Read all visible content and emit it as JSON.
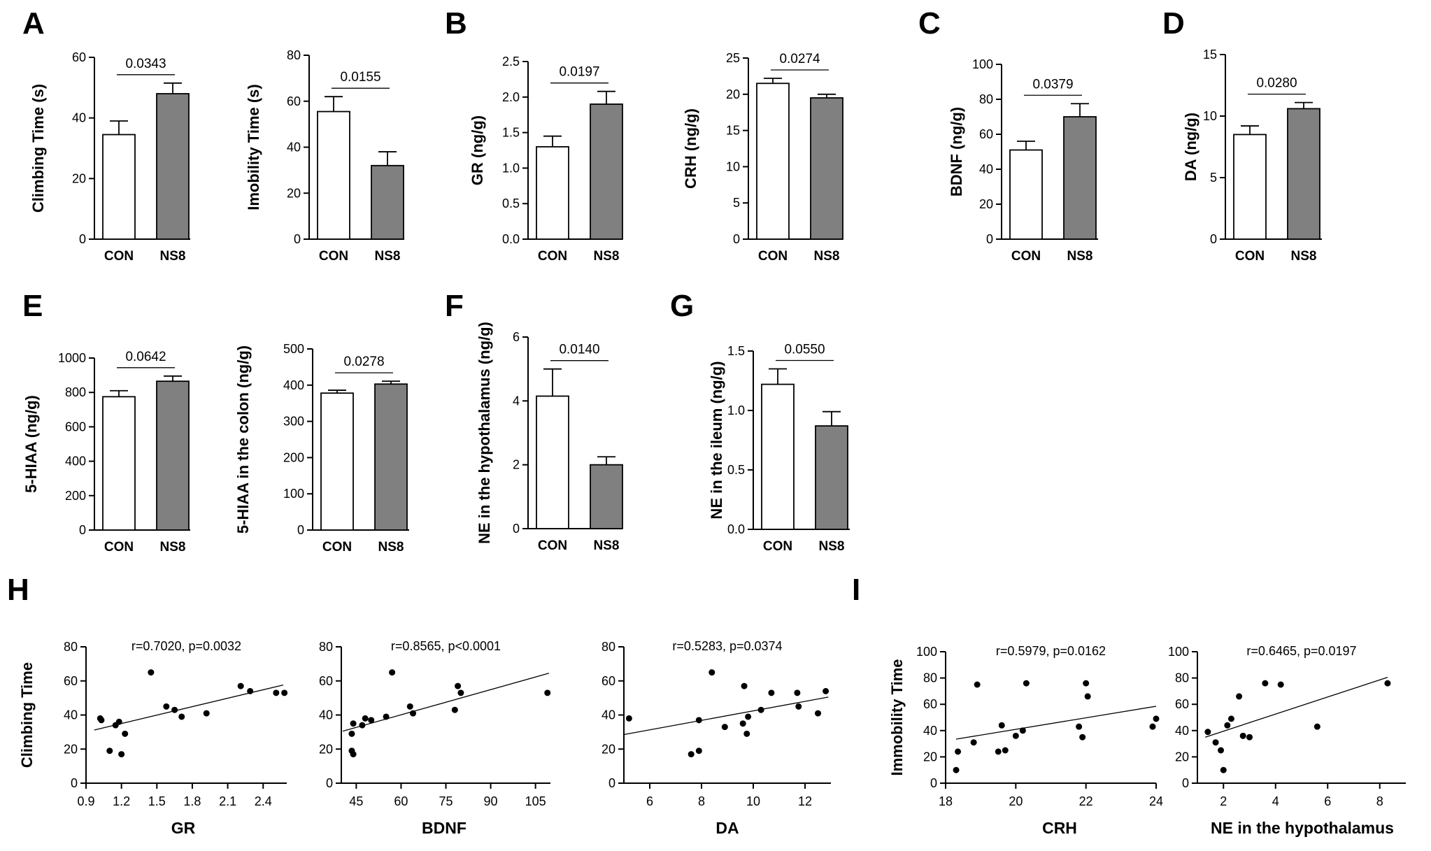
{
  "panel_letters": [
    "A",
    "B",
    "C",
    "D",
    "E",
    "F",
    "G",
    "H",
    "I"
  ],
  "colors": {
    "con_fill": "#ffffff",
    "ns8_fill": "#808080",
    "stroke": "#000000",
    "dot": "#000000"
  },
  "chart_data": [
    {
      "id": "climb",
      "panel": "A",
      "type": "bar",
      "ylabel": "Climbing Time (s)",
      "categories": [
        "CON",
        "NS8"
      ],
      "values": [
        34.5,
        48
      ],
      "errors": [
        4.5,
        3.5
      ],
      "ylim": [
        0,
        60
      ],
      "yticks": [
        0,
        20,
        40,
        60
      ],
      "pvalue": "0.0343"
    },
    {
      "id": "immob",
      "panel": "A",
      "type": "bar",
      "ylabel": "Imobility Time (s)",
      "categories": [
        "CON",
        "NS8"
      ],
      "values": [
        55.5,
        32
      ],
      "errors": [
        6.5,
        6
      ],
      "ylim": [
        0,
        80
      ],
      "yticks": [
        0,
        20,
        40,
        60,
        80
      ],
      "pvalue": "0.0155"
    },
    {
      "id": "gr",
      "panel": "B",
      "type": "bar",
      "ylabel": "GR (ng/g)",
      "categories": [
        "CON",
        "NS8"
      ],
      "values": [
        1.3,
        1.9
      ],
      "errors": [
        0.15,
        0.18
      ],
      "ylim": [
        0,
        2.5
      ],
      "yticks": [
        0.0,
        0.5,
        1.0,
        1.5,
        2.0,
        2.5
      ],
      "yticklabels": [
        "0.0",
        "0.5",
        "1.0",
        "1.5",
        "2.0",
        "2.5"
      ],
      "pvalue": "0.0197"
    },
    {
      "id": "crh",
      "panel": "B",
      "type": "bar",
      "ylabel": "CRH (ng/g)",
      "categories": [
        "CON",
        "NS8"
      ],
      "values": [
        21.5,
        19.5
      ],
      "errors": [
        0.7,
        0.5
      ],
      "ylim": [
        0,
        25
      ],
      "yticks": [
        0,
        5,
        10,
        15,
        20,
        25
      ],
      "pvalue": "0.0274"
    },
    {
      "id": "bdnf",
      "panel": "C",
      "type": "bar",
      "ylabel": "BDNF (ng/g)",
      "categories": [
        "CON",
        "NS8"
      ],
      "values": [
        51,
        70
      ],
      "errors": [
        5,
        7.5
      ],
      "ylim": [
        0,
        100
      ],
      "yticks": [
        0,
        20,
        40,
        60,
        80,
        100
      ],
      "pvalue": "0.0379"
    },
    {
      "id": "da",
      "panel": "D",
      "type": "bar",
      "ylabel": "DA (ng/g)",
      "categories": [
        "CON",
        "NS8"
      ],
      "values": [
        8.5,
        10.6
      ],
      "errors": [
        0.7,
        0.5
      ],
      "ylim": [
        0,
        15
      ],
      "yticks": [
        0,
        5,
        10,
        15
      ],
      "pvalue": "0.0280"
    },
    {
      "id": "hiaa",
      "panel": "E",
      "type": "bar",
      "ylabel": "5-HIAA (ng/g)",
      "categories": [
        "CON",
        "NS8"
      ],
      "values": [
        775,
        865
      ],
      "errors": [
        35,
        30
      ],
      "ylim": [
        0,
        1000
      ],
      "yticks": [
        0,
        200,
        400,
        600,
        800,
        1000
      ],
      "pvalue": "0.0642"
    },
    {
      "id": "hiaacol",
      "panel": "E",
      "type": "bar",
      "ylabel": "5-HIAA in the colon (ng/g)",
      "categories": [
        "CON",
        "NS8"
      ],
      "values": [
        378,
        403
      ],
      "errors": [
        8,
        8
      ],
      "ylim": [
        0,
        500
      ],
      "yticks": [
        0,
        100,
        200,
        300,
        400,
        500
      ],
      "pvalue": "0.0278"
    },
    {
      "id": "nehyp",
      "panel": "F",
      "type": "bar",
      "ylabel": "NE in the hypothalamus (ng/g)",
      "categories": [
        "CON",
        "NS8"
      ],
      "values": [
        4.15,
        2.0
      ],
      "errors": [
        0.85,
        0.25
      ],
      "ylim": [
        0,
        6
      ],
      "yticks": [
        0,
        2,
        4,
        6
      ],
      "pvalue": "0.0140"
    },
    {
      "id": "neile",
      "panel": "G",
      "type": "bar",
      "ylabel": "NE in the ileum (ng/g)",
      "categories": [
        "CON",
        "NS8"
      ],
      "values": [
        1.22,
        0.87
      ],
      "errors": [
        0.13,
        0.12
      ],
      "ylim": [
        0,
        1.5
      ],
      "yticks": [
        0,
        0.5,
        1.0,
        1.5
      ],
      "yticklabels": [
        "0.0",
        "0.5",
        "1.0",
        "1.5"
      ],
      "pvalue": "0.0550"
    },
    {
      "id": "sc_gr",
      "panel": "H",
      "type": "scatter",
      "ylabel": "Climbing Time",
      "xlabel": "GR",
      "stat": "r=0.7020, p=0.0032",
      "xlim": [
        0.9,
        2.6
      ],
      "xticks": [
        0.9,
        1.2,
        1.5,
        1.8,
        2.1,
        2.4
      ],
      "xticklabels": [
        "0.9",
        "1.2",
        "1.5",
        "1.8",
        "2.1",
        "2.4"
      ],
      "ylim": [
        0,
        80
      ],
      "yticks": [
        0,
        20,
        40,
        60,
        80
      ],
      "points": [
        [
          1.02,
          38
        ],
        [
          1.03,
          37
        ],
        [
          1.1,
          19
        ],
        [
          1.15,
          34
        ],
        [
          1.18,
          36
        ],
        [
          1.2,
          17
        ],
        [
          1.23,
          29
        ],
        [
          1.45,
          65
        ],
        [
          1.58,
          45
        ],
        [
          1.65,
          43
        ],
        [
          1.71,
          39
        ],
        [
          1.92,
          41
        ],
        [
          2.21,
          57
        ],
        [
          2.29,
          54
        ],
        [
          2.51,
          53
        ],
        [
          2.58,
          53
        ]
      ],
      "trend": [
        [
          0.97,
          31.2
        ],
        [
          2.57,
          57.6
        ]
      ]
    },
    {
      "id": "sc_bdnf",
      "panel": "H",
      "type": "scatter",
      "ylabel": "",
      "xlabel": "BDNF",
      "stat": "r=0.8565, p<0.0001",
      "xlim": [
        40,
        110
      ],
      "xticks": [
        45,
        60,
        75,
        90,
        105
      ],
      "ylim": [
        0,
        80
      ],
      "yticks": [
        0,
        20,
        40,
        60,
        80
      ],
      "points": [
        [
          43.5,
          29
        ],
        [
          43.5,
          19
        ],
        [
          44,
          35
        ],
        [
          44,
          17
        ],
        [
          47,
          34
        ],
        [
          48,
          38
        ],
        [
          50,
          37
        ],
        [
          55,
          39
        ],
        [
          57,
          65
        ],
        [
          63,
          45
        ],
        [
          64,
          41
        ],
        [
          78,
          43
        ],
        [
          79,
          57
        ],
        [
          80,
          53
        ],
        [
          109,
          53
        ]
      ],
      "trend": [
        [
          40.5,
          30.5
        ],
        [
          109.5,
          64.5
        ]
      ]
    },
    {
      "id": "sc_da",
      "panel": "H",
      "type": "scatter",
      "ylabel": "",
      "xlabel": "DA",
      "stat": "r=0.5283, p=0.0374",
      "xlim": [
        5,
        13
      ],
      "xticks": [
        6,
        8,
        10,
        12
      ],
      "ylim": [
        0,
        80
      ],
      "yticks": [
        0,
        20,
        40,
        60,
        80
      ],
      "points": [
        [
          5.2,
          38
        ],
        [
          7.6,
          17
        ],
        [
          7.9,
          19
        ],
        [
          7.9,
          37
        ],
        [
          8.4,
          65
        ],
        [
          8.9,
          33
        ],
        [
          9.6,
          35
        ],
        [
          9.65,
          57
        ],
        [
          9.75,
          29
        ],
        [
          9.8,
          39
        ],
        [
          10.3,
          43
        ],
        [
          10.7,
          53
        ],
        [
          11.7,
          53
        ],
        [
          11.75,
          45
        ],
        [
          12.5,
          41
        ],
        [
          12.8,
          54
        ]
      ],
      "trend": [
        [
          5.0,
          28.5
        ],
        [
          12.9,
          50.5
        ]
      ]
    },
    {
      "id": "sc_crh",
      "panel": "I",
      "type": "scatter",
      "ylabel": "Immobility Time",
      "xlabel": "CRH",
      "stat": "r=0.5979, p=0.0162",
      "xlim": [
        18,
        24
      ],
      "xticks": [
        18,
        20,
        22,
        24
      ],
      "ylim": [
        0,
        100
      ],
      "yticks": [
        0,
        20,
        40,
        60,
        80,
        100
      ],
      "points": [
        [
          18.3,
          10
        ],
        [
          18.35,
          24
        ],
        [
          18.8,
          31
        ],
        [
          18.9,
          75
        ],
        [
          19.5,
          24
        ],
        [
          19.6,
          44
        ],
        [
          19.7,
          25
        ],
        [
          20.0,
          36
        ],
        [
          20.2,
          40
        ],
        [
          20.3,
          76
        ],
        [
          21.8,
          43
        ],
        [
          21.9,
          35
        ],
        [
          22.0,
          76
        ],
        [
          22.05,
          66
        ],
        [
          23.9,
          43
        ],
        [
          24.0,
          49
        ]
      ],
      "trend": [
        [
          18.3,
          33.5
        ],
        [
          24.0,
          58.5
        ]
      ]
    },
    {
      "id": "sc_nehyp",
      "panel": "I",
      "type": "scatter",
      "ylabel": "",
      "xlabel": "NE in the hypothalamus",
      "stat": "r=0.6465, p=0.0197",
      "xlim": [
        1,
        9
      ],
      "xticks": [
        2,
        4,
        6,
        8
      ],
      "ylim": [
        0,
        100
      ],
      "yticks": [
        0,
        20,
        40,
        60,
        80,
        100
      ],
      "points": [
        [
          1.4,
          39
        ],
        [
          1.7,
          31
        ],
        [
          1.9,
          25
        ],
        [
          2.0,
          10
        ],
        [
          2.15,
          44
        ],
        [
          2.3,
          49
        ],
        [
          2.6,
          66
        ],
        [
          2.75,
          36
        ],
        [
          3.0,
          35
        ],
        [
          3.6,
          76
        ],
        [
          4.2,
          75
        ],
        [
          5.6,
          43
        ],
        [
          8.3,
          76
        ]
      ],
      "trend": [
        [
          1.3,
          35.0
        ],
        [
          8.3,
          80.5
        ]
      ]
    }
  ]
}
